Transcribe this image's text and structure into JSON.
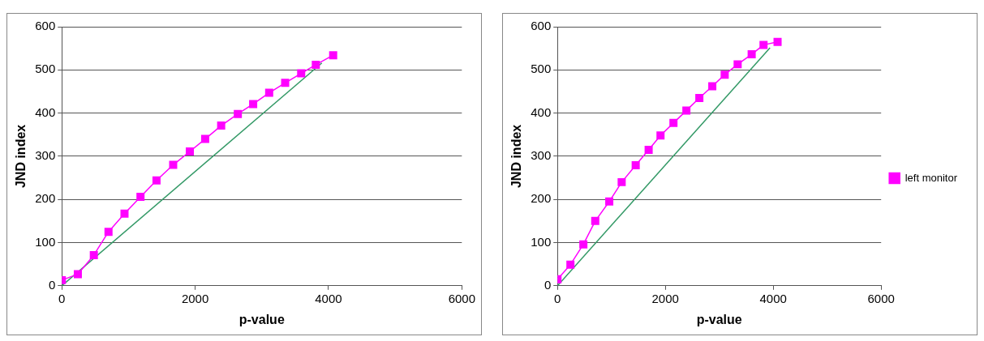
{
  "chart_data": [
    {
      "type": "scatter",
      "xlabel": "p-value",
      "ylabel": "JND index",
      "xlim": [
        0,
        6000
      ],
      "xticks": [
        0,
        2000,
        4000,
        6000
      ],
      "ylim": [
        0,
        600
      ],
      "yticks": [
        0,
        100,
        200,
        300,
        400,
        500,
        600
      ],
      "grid": "y",
      "legend": false,
      "series": [
        {
          "type": "line",
          "color": "#ff00ff",
          "marker": "square",
          "x": [
            0,
            240,
            480,
            700,
            940,
            1180,
            1420,
            1670,
            1920,
            2150,
            2390,
            2640,
            2870,
            3110,
            3350,
            3590,
            3810,
            4070
          ],
          "values": [
            13,
            27,
            71,
            125,
            167,
            206,
            244,
            280,
            311,
            340,
            371,
            398,
            421,
            447,
            470,
            492,
            512,
            534
          ]
        },
        {
          "type": "line",
          "color": "#339966",
          "marker": "none",
          "x": [
            0,
            3900
          ],
          "values": [
            0,
            516
          ]
        }
      ]
    },
    {
      "type": "scatter",
      "xlabel": "p-value",
      "ylabel": "JND index",
      "xlim": [
        0,
        6000
      ],
      "xticks": [
        0,
        2000,
        4000,
        6000
      ],
      "ylim": [
        0,
        600
      ],
      "yticks": [
        0,
        100,
        200,
        300,
        400,
        500,
        600
      ],
      "grid": "y",
      "legend": "right",
      "series": [
        {
          "type": "line",
          "name": "left monitor",
          "color": "#ff00ff",
          "marker": "square",
          "x": [
            0,
            240,
            480,
            700,
            960,
            1190,
            1450,
            1690,
            1910,
            2150,
            2390,
            2630,
            2870,
            3100,
            3340,
            3600,
            3820,
            4080
          ],
          "values": [
            15,
            49,
            96,
            150,
            195,
            240,
            279,
            315,
            348,
            377,
            406,
            435,
            462,
            489,
            513,
            536,
            558,
            565
          ]
        },
        {
          "type": "line",
          "color": "#339966",
          "marker": "none",
          "x": [
            0,
            3940
          ],
          "values": [
            0,
            551
          ]
        }
      ]
    }
  ]
}
